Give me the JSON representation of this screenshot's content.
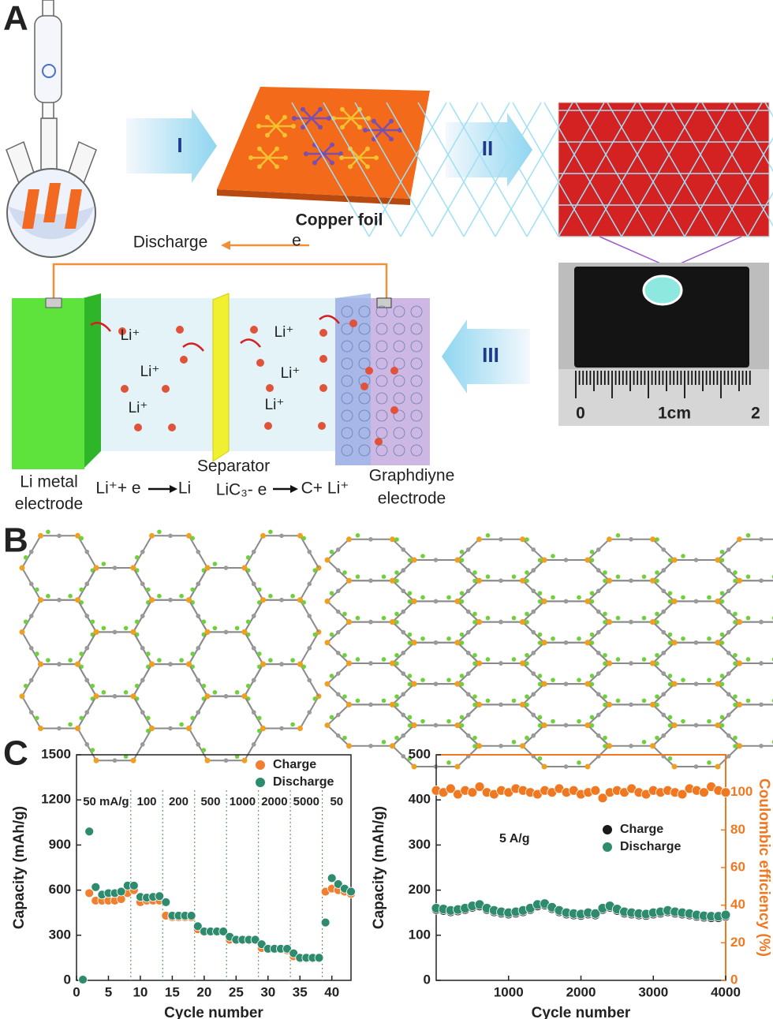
{
  "figure": {
    "panel_labels": [
      "A",
      "B",
      "C"
    ]
  },
  "diagram": {
    "steps": [
      "I",
      "II",
      "III"
    ],
    "copper_foil": "Copper foil",
    "discharge": "Discharge",
    "electron": "e",
    "ions": [
      "Li⁺",
      "Li⁺",
      "Li⁺",
      "Li⁺",
      "Li⁺",
      "Li⁺"
    ],
    "ruler_labels": [
      "0",
      "1cm",
      "2"
    ],
    "left_electrode": [
      "Li metal",
      "electrode"
    ],
    "separator": "Separator",
    "right_electrode": [
      "Graphdiyne",
      "electrode"
    ],
    "reactions": [
      [
        "Li⁺+ e",
        "Li"
      ],
      [
        "LiC₃- e",
        "C+ Li⁺"
      ]
    ]
  },
  "chart_data": [
    {
      "type": "scatter",
      "xlabel": "Cycle number",
      "ylabel": "Capacity (mAh/g)",
      "x": [
        1,
        2,
        3,
        4,
        5,
        6,
        7,
        8,
        9,
        10,
        11,
        12,
        13,
        14,
        15,
        16,
        17,
        18,
        19,
        20,
        21,
        22,
        23,
        24,
        25,
        26,
        27,
        28,
        29,
        30,
        31,
        32,
        33,
        34,
        35,
        36,
        37,
        38,
        39,
        40,
        41,
        42,
        43
      ],
      "series": [
        {
          "name": "Charge",
          "color": "#f08030",
          "values": [
            null,
            580,
            530,
            530,
            530,
            530,
            540,
            580,
            600,
            520,
            530,
            530,
            530,
            430,
            420,
            420,
            420,
            420,
            340,
            320,
            320,
            320,
            320,
            270,
            265,
            265,
            265,
            265,
            215,
            205,
            205,
            205,
            200,
            160,
            145,
            145,
            145,
            145,
            590,
            610,
            600,
            590,
            575
          ]
        },
        {
          "name": "Discharge",
          "color": "#2e8b6e",
          "values": [
            5,
            990,
            620,
            570,
            580,
            580,
            590,
            630,
            630,
            555,
            550,
            555,
            560,
            520,
            430,
            430,
            430,
            430,
            360,
            325,
            325,
            325,
            325,
            290,
            270,
            270,
            270,
            270,
            240,
            210,
            210,
            210,
            210,
            180,
            150,
            150,
            150,
            150,
            385,
            680,
            640,
            610,
            590
          ]
        }
      ],
      "xlim": [
        0,
        43
      ],
      "xticks": [
        0,
        5,
        10,
        15,
        20,
        25,
        30,
        35,
        40
      ],
      "ylim": [
        0,
        1500
      ],
      "yticks": [
        0,
        300,
        600,
        900,
        1200,
        1500
      ],
      "dividers": [
        8.5,
        13.5,
        18.5,
        23.5,
        28.5,
        33.5,
        38.5
      ],
      "rate_labels": [
        "50 mA/g",
        "100",
        "200",
        "500",
        "1000",
        "2000",
        "5000",
        "50"
      ],
      "legend": "upper right"
    },
    {
      "type": "scatter",
      "xlabel": "Cycle number",
      "ylabel": "Capacity (mAh/g)",
      "y2label": "Coulombic efficiency (%)",
      "annotation": "5 A/g",
      "x": [
        0,
        100,
        200,
        300,
        400,
        500,
        600,
        700,
        800,
        900,
        1000,
        1100,
        1200,
        1300,
        1400,
        1500,
        1600,
        1700,
        1800,
        1900,
        2000,
        2100,
        2200,
        2300,
        2400,
        2500,
        2600,
        2700,
        2800,
        2900,
        3000,
        3100,
        3200,
        3300,
        3400,
        3500,
        3600,
        3700,
        3800,
        3900,
        4000
      ],
      "series": [
        {
          "color": "#f07820",
          "axis": "y2",
          "values": [
            101,
            100,
            102,
            99,
            101,
            100,
            103,
            100,
            99,
            101,
            100,
            102,
            101,
            100,
            99,
            101,
            100,
            102,
            100,
            101,
            99,
            100,
            101,
            97,
            100,
            101,
            100,
            102,
            100,
            99,
            101,
            100,
            101,
            100,
            99,
            102,
            101,
            100,
            103,
            101,
            100
          ]
        },
        {
          "name": "Charge",
          "color": "#1a1a1a",
          "values": [
            157,
            155,
            152,
            154,
            157,
            162,
            165,
            157,
            152,
            149,
            147,
            149,
            152,
            157,
            165,
            167,
            159,
            152,
            147,
            145,
            144,
            147,
            145,
            157,
            162,
            155,
            149,
            147,
            145,
            144,
            147,
            149,
            152,
            149,
            147,
            145,
            142,
            140,
            139,
            139,
            142
          ]
        },
        {
          "name": "Discharge",
          "color": "#2e8b6e",
          "values": [
            160,
            158,
            155,
            157,
            160,
            165,
            168,
            160,
            155,
            152,
            150,
            152,
            155,
            160,
            168,
            170,
            162,
            155,
            150,
            148,
            147,
            150,
            148,
            160,
            165,
            158,
            152,
            150,
            148,
            147,
            150,
            152,
            155,
            152,
            150,
            148,
            145,
            143,
            142,
            142,
            145
          ]
        }
      ],
      "xlim": [
        0,
        4000
      ],
      "xticks": [
        1000,
        2000,
        3000,
        4000
      ],
      "ylim": [
        0,
        500
      ],
      "yticks": [
        0,
        100,
        200,
        300,
        400,
        500
      ],
      "y2lim": [
        0,
        120
      ],
      "y2ticks": [
        0,
        20,
        40,
        60,
        80,
        100
      ],
      "y2color": "#f07820",
      "legend": "center right"
    }
  ]
}
